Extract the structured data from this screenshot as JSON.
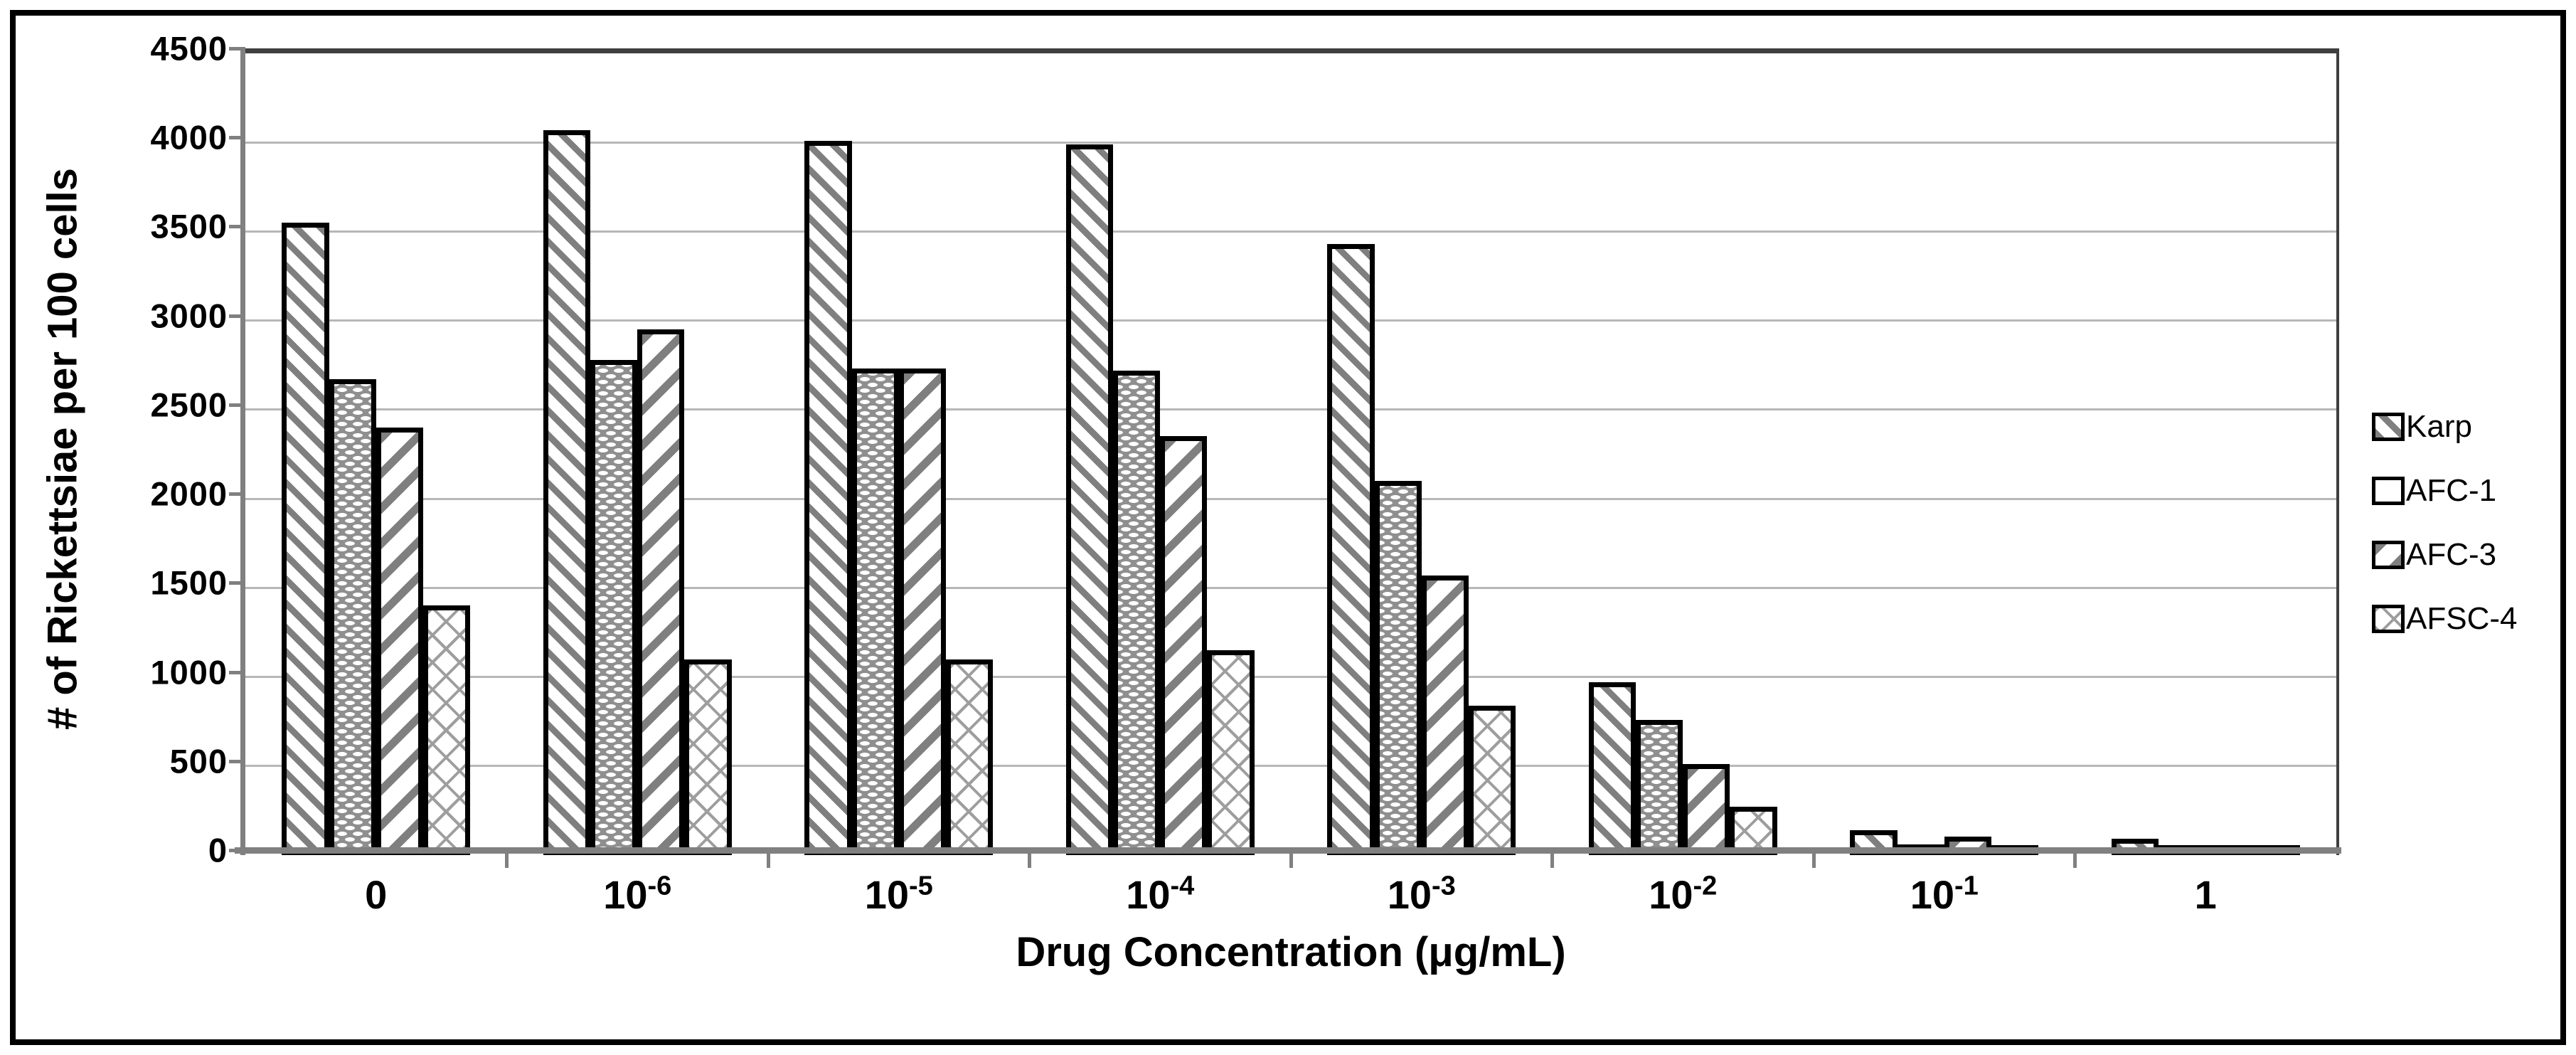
{
  "figure": {
    "background": "#ffffff",
    "border_color": "#000000"
  },
  "chart_data": {
    "type": "bar",
    "title": "",
    "xlabel": "Drug Concentration (μg/mL)",
    "ylabel": "# of Rickettsiae per 100 cells",
    "categories": [
      "0",
      "10^-6",
      "10^-5",
      "10^-4",
      "10^-3",
      "10^-2",
      "10^-1",
      "1"
    ],
    "series": [
      {
        "name": "Karp",
        "pattern": "diag-down",
        "values": [
          3550,
          4070,
          4010,
          3990,
          3430,
          970,
          140,
          90
        ]
      },
      {
        "name": "AFC-1",
        "pattern": "dots",
        "values": [
          2670,
          2780,
          2730,
          2720,
          2100,
          760,
          60,
          15
        ]
      },
      {
        "name": "AFC-3",
        "pattern": "diag-up",
        "values": [
          2400,
          2950,
          2730,
          2350,
          1570,
          510,
          105,
          25
        ]
      },
      {
        "name": "AFSC-4",
        "pattern": "crosshatch",
        "values": [
          1400,
          1100,
          1100,
          1150,
          840,
          270,
          55,
          15
        ]
      }
    ],
    "ylim": [
      0,
      4500
    ],
    "ytick_step": 500,
    "grid": "horizontal",
    "legend_position": "right"
  },
  "colors": {
    "grid": "#b7b7b7",
    "axis": "#808080",
    "bar_outline": "#000000",
    "hatch_gray": "#7f7f7f",
    "text": "#000000"
  }
}
